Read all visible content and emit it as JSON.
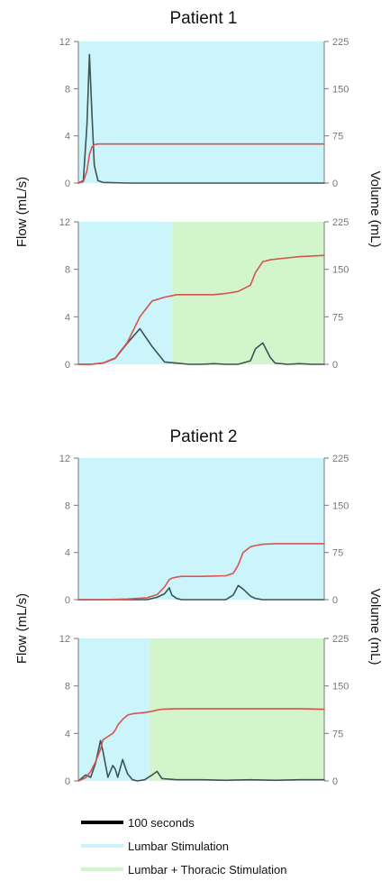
{
  "colors": {
    "lumbar": "#ccf4fb",
    "thoracic": "#d3f5cc",
    "flow": "#3d5451",
    "volume": "#d9534f",
    "axis": "#777777",
    "scale_bar": "#000000"
  },
  "legend": {
    "scale_bar": "100 seconds",
    "lumbar": "Lumbar Stimulation",
    "lumbar_thoracic": "Lumbar + Thoracic Stimulation"
  },
  "patients": [
    {
      "title": "Patient 1",
      "ylabel_left": "Flow (mL/s)",
      "ylabel_right": "Volume (mL)"
    },
    {
      "title": "Patient 2",
      "ylabel_left": "Flow (mL/s)",
      "ylabel_right": "Volume (mL)"
    }
  ],
  "chart_data": [
    {
      "type": "line",
      "title": "Patient 1",
      "ylabel": "Flow (mL/s)",
      "y2label": "Volume (mL)",
      "ylim": [
        0,
        12
      ],
      "y2lim": [
        0,
        225
      ],
      "yticks": [
        "0",
        "4",
        "8",
        "12"
      ],
      "y2ticks": [
        "0",
        "75",
        "150",
        "225"
      ],
      "x": [
        0,
        0.02,
        0.035,
        0.045,
        0.055,
        0.065,
        0.08,
        0.1,
        0.2,
        0.5,
        1
      ],
      "series": [
        {
          "axis": "left",
          "values": [
            0,
            0.2,
            5,
            10.9,
            6,
            1.5,
            0.2,
            0.05,
            0,
            0,
            0
          ]
        },
        {
          "axis": "right",
          "values": [
            0,
            2,
            20,
            45,
            57,
            61,
            62,
            62,
            62,
            62,
            62
          ]
        }
      ],
      "regions": [
        {
          "from": 0,
          "to": 1,
          "label": "Lumbar Stimulation"
        }
      ]
    },
    {
      "type": "line",
      "ylabel": "Flow (mL/s)",
      "y2label": "Volume (mL)",
      "ylim": [
        0,
        12
      ],
      "y2lim": [
        0,
        225
      ],
      "yticks": [
        "0",
        "4",
        "8",
        "12"
      ],
      "y2ticks": [
        "0",
        "75",
        "150",
        "225"
      ],
      "x": [
        0,
        0.05,
        0.1,
        0.15,
        0.2,
        0.25,
        0.3,
        0.35,
        0.4,
        0.45,
        0.5,
        0.55,
        0.6,
        0.65,
        0.7,
        0.72,
        0.75,
        0.78,
        0.8,
        0.85,
        0.9,
        0.95,
        1
      ],
      "series": [
        {
          "axis": "left",
          "values": [
            0,
            0,
            0.1,
            0.5,
            1.8,
            3,
            1.5,
            0.2,
            0.1,
            0,
            0,
            0.05,
            0,
            0,
            0.3,
            1.3,
            1.8,
            0.6,
            0.1,
            0,
            0.05,
            0,
            0
          ]
        },
        {
          "axis": "right",
          "values": [
            0,
            0,
            2,
            10,
            35,
            75,
            100,
            106,
            110,
            110,
            110,
            110,
            112,
            115,
            125,
            145,
            162,
            165,
            166,
            168,
            170,
            171,
            172
          ]
        }
      ],
      "regions": [
        {
          "from": 0,
          "to": 0.38,
          "label": "Lumbar Stimulation"
        },
        {
          "from": 0.38,
          "to": 1,
          "label": "Lumbar + Thoracic Stimulation"
        }
      ]
    },
    {
      "type": "line",
      "title": "Patient 2",
      "ylabel": "Flow (mL/s)",
      "y2label": "Volume (mL)",
      "ylim": [
        0,
        12
      ],
      "y2lim": [
        0,
        225
      ],
      "yticks": [
        "0",
        "4",
        "8",
        "12"
      ],
      "y2ticks": [
        "0",
        "75",
        "150",
        "225"
      ],
      "x": [
        0,
        0.1,
        0.2,
        0.28,
        0.32,
        0.35,
        0.37,
        0.38,
        0.4,
        0.42,
        0.45,
        0.5,
        0.6,
        0.63,
        0.65,
        0.67,
        0.7,
        0.72,
        0.75,
        0.8,
        0.9,
        1
      ],
      "series": [
        {
          "axis": "left",
          "values": [
            0,
            0,
            0,
            0,
            0.2,
            0.5,
            1,
            0.4,
            0.1,
            0,
            0,
            0,
            0,
            0.4,
            1.2,
            0.9,
            0.3,
            0.1,
            0,
            0,
            0,
            0
          ]
        },
        {
          "axis": "right",
          "values": [
            0,
            0,
            1,
            3,
            8,
            20,
            32,
            34,
            36,
            37,
            37,
            37,
            38,
            42,
            55,
            75,
            84,
            86,
            88,
            89,
            89,
            89
          ]
        }
      ],
      "regions": [
        {
          "from": 0,
          "to": 1,
          "label": "Lumbar Stimulation"
        }
      ]
    },
    {
      "type": "line",
      "ylabel": "Flow (mL/s)",
      "y2label": "Volume (mL)",
      "ylim": [
        0,
        12
      ],
      "y2lim": [
        0,
        225
      ],
      "yticks": [
        "0",
        "4",
        "8",
        "12"
      ],
      "y2ticks": [
        "0",
        "75",
        "150",
        "225"
      ],
      "x": [
        0,
        0.03,
        0.05,
        0.07,
        0.09,
        0.1,
        0.12,
        0.14,
        0.15,
        0.16,
        0.18,
        0.2,
        0.22,
        0.24,
        0.27,
        0.3,
        0.32,
        0.34,
        0.4,
        0.5,
        0.6,
        0.7,
        0.8,
        0.9,
        1
      ],
      "series": [
        {
          "axis": "left",
          "values": [
            0,
            0.5,
            0.3,
            1.5,
            3.4,
            2.5,
            0.3,
            1.3,
            1.0,
            0.3,
            1.8,
            0.6,
            0.1,
            0,
            0.1,
            0.5,
            0.8,
            0.2,
            0.1,
            0.1,
            0.05,
            0.1,
            0.05,
            0.1,
            0.1
          ]
        },
        {
          "axis": "right",
          "values": [
            0,
            5,
            15,
            30,
            50,
            65,
            70,
            75,
            80,
            88,
            97,
            104,
            106,
            107,
            108,
            110,
            112,
            113,
            114,
            114,
            114,
            114,
            114,
            114,
            113
          ]
        }
      ],
      "regions": [
        {
          "from": 0,
          "to": 0.29,
          "label": "Lumbar Stimulation"
        },
        {
          "from": 0.29,
          "to": 1,
          "label": "Lumbar + Thoracic Stimulation"
        }
      ]
    }
  ]
}
